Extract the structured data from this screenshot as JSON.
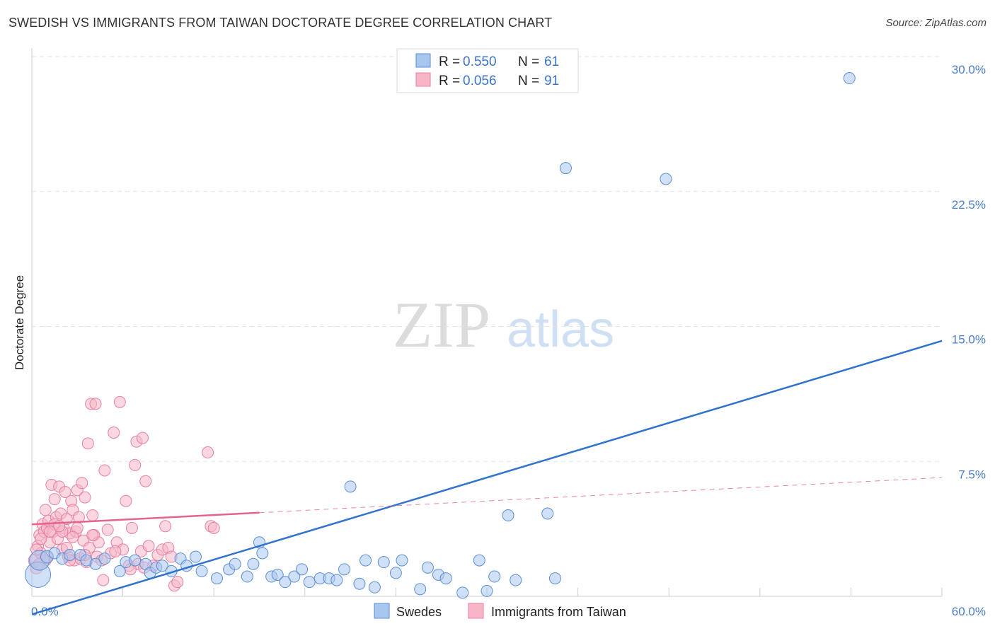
{
  "title": "SWEDISH VS IMMIGRANTS FROM TAIWAN DOCTORATE DEGREE CORRELATION CHART",
  "source": "Source: ZipAtlas.com",
  "watermark": {
    "zip": "ZIP",
    "atlas": "atlas"
  },
  "colors": {
    "blue_fill": "#a9c6ee",
    "blue_stroke": "#5b8fd6",
    "blue_line": "#2f72cf",
    "pink_fill": "#f6b6c8",
    "pink_stroke": "#e87fa0",
    "pink_line": "#e5648e",
    "grid": "#e3e3e3",
    "tick_text": "#4a7cc7"
  },
  "legend": {
    "r_label": "R =",
    "n_label": "N =",
    "rows": [
      {
        "series": "Swedes",
        "r": "0.550",
        "n": "61"
      },
      {
        "series": "Immigrants from Taiwan",
        "r": "0.056",
        "n": "91"
      }
    ]
  },
  "chart_data": {
    "type": "scatter",
    "title": "SWEDISH VS IMMIGRANTS FROM TAIWAN DOCTORATE DEGREE CORRELATION CHART",
    "xlabel": "",
    "ylabel": "Doctorate Degree",
    "xlim": [
      0,
      60
    ],
    "ylim": [
      0,
      30
    ],
    "x_tick_labels": [
      "0.0%",
      "60.0%"
    ],
    "y_tick_labels": [
      "7.5%",
      "15.0%",
      "22.5%",
      "30.0%"
    ],
    "y_ticks": [
      7.5,
      15,
      22.5,
      30
    ],
    "x_minor_ticks": [
      6,
      12,
      18,
      24,
      30,
      36,
      42,
      48,
      54,
      60
    ],
    "grid": true,
    "legend_position": "bottom-center",
    "series": [
      {
        "name": "Swedes",
        "color": "blue",
        "points": [
          [
            0.4,
            1.2,
            18
          ],
          [
            0.5,
            2.0,
            14
          ],
          [
            1.0,
            2.2,
            9
          ],
          [
            1.5,
            2.4,
            8
          ],
          [
            2.0,
            2.1,
            8
          ],
          [
            2.5,
            2.3,
            8
          ],
          [
            3.2,
            2.3,
            8
          ],
          [
            3.6,
            2.0,
            8
          ],
          [
            4.2,
            1.8,
            8
          ],
          [
            4.8,
            2.1,
            8
          ],
          [
            5.8,
            1.4,
            8
          ],
          [
            6.2,
            1.9,
            8
          ],
          [
            6.8,
            2.0,
            8
          ],
          [
            7.5,
            1.8,
            8
          ],
          [
            7.8,
            1.3,
            8
          ],
          [
            8.2,
            1.6,
            8
          ],
          [
            8.6,
            1.7,
            8
          ],
          [
            9.2,
            1.4,
            8
          ],
          [
            9.8,
            2.1,
            8
          ],
          [
            10.2,
            1.7,
            8
          ],
          [
            10.8,
            2.2,
            8
          ],
          [
            11.2,
            1.4,
            8
          ],
          [
            12.2,
            1.0,
            8
          ],
          [
            13.0,
            1.5,
            8
          ],
          [
            13.4,
            1.8,
            8
          ],
          [
            14.2,
            1.1,
            8
          ],
          [
            14.6,
            1.8,
            8
          ],
          [
            15.2,
            2.4,
            8
          ],
          [
            15.8,
            1.1,
            8
          ],
          [
            16.2,
            1.2,
            8
          ],
          [
            16.7,
            0.8,
            8
          ],
          [
            17.3,
            1.1,
            8
          ],
          [
            17.8,
            1.5,
            8
          ],
          [
            18.3,
            0.8,
            8
          ],
          [
            19.0,
            1.0,
            8
          ],
          [
            19.6,
            1.0,
            8
          ],
          [
            20.1,
            0.9,
            8
          ],
          [
            20.6,
            1.5,
            8
          ],
          [
            21.6,
            0.7,
            8
          ],
          [
            22.0,
            2.0,
            8
          ],
          [
            22.6,
            0.5,
            8
          ],
          [
            23.2,
            1.9,
            8
          ],
          [
            24.0,
            1.3,
            8
          ],
          [
            24.4,
            2.0,
            8
          ],
          [
            25.6,
            0.4,
            8
          ],
          [
            26.1,
            1.6,
            8
          ],
          [
            26.8,
            1.2,
            8
          ],
          [
            27.3,
            1.0,
            8
          ],
          [
            28.4,
            0.2,
            8
          ],
          [
            29.5,
            2.0,
            8
          ],
          [
            30.0,
            0.3,
            8
          ],
          [
            30.5,
            1.1,
            8
          ],
          [
            31.9,
            0.9,
            8
          ],
          [
            34.5,
            1.0,
            8
          ],
          [
            21.0,
            6.1,
            8
          ],
          [
            31.4,
            4.5,
            8
          ],
          [
            34.0,
            4.6,
            8
          ],
          [
            35.2,
            23.8,
            8
          ],
          [
            41.8,
            23.2,
            8
          ],
          [
            53.9,
            28.8,
            8
          ],
          [
            15.0,
            3.0,
            8
          ]
        ]
      },
      {
        "name": "Immigrants from Taiwan",
        "color": "pink",
        "points": [
          [
            0.2,
            2.0,
            9
          ],
          [
            0.3,
            1.6,
            9
          ],
          [
            0.4,
            2.8,
            8
          ],
          [
            0.5,
            3.4,
            8
          ],
          [
            0.6,
            2.4,
            8
          ],
          [
            0.7,
            4.0,
            8
          ],
          [
            0.8,
            3.6,
            8
          ],
          [
            0.9,
            4.8,
            8
          ],
          [
            1.0,
            3.8,
            8
          ],
          [
            1.1,
            4.2,
            8
          ],
          [
            1.2,
            3.0,
            8
          ],
          [
            1.3,
            6.2,
            8
          ],
          [
            1.4,
            3.6,
            8
          ],
          [
            1.5,
            5.4,
            8
          ],
          [
            1.6,
            4.4,
            8
          ],
          [
            1.7,
            3.2,
            8
          ],
          [
            1.8,
            6.1,
            8
          ],
          [
            1.9,
            4.6,
            8
          ],
          [
            2.0,
            2.6,
            8
          ],
          [
            2.1,
            3.8,
            8
          ],
          [
            2.2,
            5.8,
            8
          ],
          [
            2.3,
            4.3,
            8
          ],
          [
            2.4,
            2.2,
            8
          ],
          [
            2.5,
            3.5,
            8
          ],
          [
            2.6,
            5.3,
            8
          ],
          [
            2.7,
            4.8,
            8
          ],
          [
            2.8,
            2.0,
            8
          ],
          [
            2.9,
            3.6,
            8
          ],
          [
            3.0,
            5.9,
            8
          ],
          [
            3.1,
            4.4,
            8
          ],
          [
            3.2,
            2.1,
            8
          ],
          [
            3.3,
            6.3,
            8
          ],
          [
            3.4,
            3.1,
            8
          ],
          [
            3.5,
            5.5,
            8
          ],
          [
            3.6,
            1.9,
            8
          ],
          [
            3.7,
            8.5,
            8
          ],
          [
            3.8,
            2.7,
            8
          ],
          [
            3.9,
            10.7,
            8
          ],
          [
            4.0,
            4.5,
            8
          ],
          [
            4.1,
            3.4,
            8
          ],
          [
            4.2,
            10.7,
            8
          ],
          [
            4.3,
            2.2,
            8
          ],
          [
            4.4,
            3.0,
            8
          ],
          [
            4.6,
            2.0,
            8
          ],
          [
            4.8,
            7.0,
            8
          ],
          [
            5.0,
            3.7,
            8
          ],
          [
            5.2,
            2.4,
            8
          ],
          [
            5.4,
            9.1,
            8
          ],
          [
            5.6,
            3.0,
            8
          ],
          [
            5.8,
            10.8,
            8
          ],
          [
            6.0,
            2.6,
            8
          ],
          [
            6.2,
            5.3,
            8
          ],
          [
            6.4,
            1.7,
            8
          ],
          [
            6.6,
            3.8,
            8
          ],
          [
            6.8,
            7.3,
            8
          ],
          [
            6.9,
            8.6,
            8
          ],
          [
            7.0,
            1.8,
            8
          ],
          [
            7.2,
            2.5,
            8
          ],
          [
            7.3,
            8.8,
            8
          ],
          [
            7.5,
            6.4,
            8
          ],
          [
            7.7,
            2.8,
            8
          ],
          [
            8.0,
            1.7,
            8
          ],
          [
            8.3,
            2.3,
            8
          ],
          [
            8.6,
            2.6,
            8
          ],
          [
            8.8,
            3.9,
            8
          ],
          [
            9.4,
            0.6,
            8
          ],
          [
            9.6,
            0.8,
            8
          ],
          [
            9.0,
            2.7,
            8
          ],
          [
            9.2,
            2.2,
            8
          ],
          [
            11.6,
            8.0,
            8
          ],
          [
            11.8,
            3.9,
            8
          ],
          [
            12.0,
            3.8,
            8
          ],
          [
            4.7,
            0.9,
            8
          ],
          [
            1.5,
            4.0,
            8
          ],
          [
            2.0,
            3.6,
            8
          ],
          [
            2.5,
            2.0,
            8
          ],
          [
            3.0,
            3.8,
            8
          ],
          [
            3.5,
            2.3,
            8
          ],
          [
            4.0,
            3.4,
            8
          ],
          [
            1.0,
            2.2,
            8
          ],
          [
            0.6,
            3.2,
            8
          ],
          [
            0.9,
            2.0,
            8
          ],
          [
            1.8,
            3.9,
            8
          ],
          [
            2.3,
            2.7,
            8
          ],
          [
            5.5,
            2.5,
            8
          ],
          [
            6.5,
            1.5,
            8
          ],
          [
            7.4,
            1.6,
            8
          ],
          [
            0.3,
            2.6,
            8
          ],
          [
            0.5,
            1.8,
            8
          ],
          [
            1.2,
            3.6,
            8
          ],
          [
            2.7,
            3.3,
            8
          ]
        ]
      }
    ],
    "trend_lines": [
      {
        "series": "Swedes",
        "x": [
          0,
          60
        ],
        "y": [
          -1.0,
          14.2
        ],
        "style": "solid"
      },
      {
        "series": "Immigrants from Taiwan",
        "x": [
          0,
          15
        ],
        "y": [
          4.0,
          4.65
        ],
        "style": "solid"
      },
      {
        "series": "Immigrants from Taiwan",
        "x": [
          15,
          60
        ],
        "y": [
          4.65,
          6.6
        ],
        "style": "dashed"
      }
    ]
  }
}
